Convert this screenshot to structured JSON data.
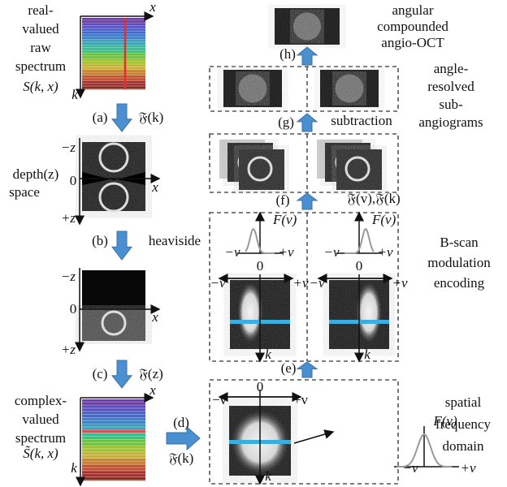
{
  "raw_spectrum": {
    "label": [
      "real-",
      "valued",
      "raw",
      "spectrum"
    ],
    "symbol": "S(k, x)",
    "x_axis": "x",
    "k_axis": "k"
  },
  "step_a": {
    "label": "(a)",
    "op": "𝔉(k)"
  },
  "depth_space": {
    "label": [
      "depth(z)",
      "space"
    ],
    "neg": "−z",
    "zero": "0",
    "pos": "+z",
    "x_axis": "x"
  },
  "step_b": {
    "label": "(b)",
    "op": "heaviside"
  },
  "heaviside_space": {
    "neg": "−z",
    "zero": "0",
    "pos": "+z",
    "x_axis": "x"
  },
  "step_c": {
    "label": "(c)",
    "op": "𝔉(z)"
  },
  "complex_spectrum": {
    "label": [
      "complex-",
      "valued",
      "spectrum"
    ],
    "symbol": "S̃(k, x)",
    "x_axis": "x",
    "k_axis": "k"
  },
  "step_d": {
    "label": "(d)",
    "op": "𝔉(k)"
  },
  "spatial_frequency": {
    "label": [
      "spatial",
      "frequency",
      "domain"
    ],
    "zero": "0",
    "neg": "−v",
    "pos": "+v",
    "k_axis": "k",
    "profile": {
      "func": "F(v)",
      "neg": "−v",
      "pos": "+v"
    }
  },
  "step_e": {
    "label": "(e)"
  },
  "bscan_encoding": {
    "label": [
      "B-scan",
      "modulation",
      "encoding"
    ],
    "panels": [
      {
        "func": "F(v)",
        "fneg": "−v",
        "fpos": "+v",
        "zero": "0",
        "neg": "−v",
        "pos": "+v",
        "k_axis": "k"
      },
      {
        "func": "F(v)",
        "fneg": "−v",
        "fpos": "+v",
        "zero": "0",
        "neg": "−v",
        "pos": "+v",
        "k_axis": "k"
      }
    ]
  },
  "step_f": {
    "label": "(f)",
    "op": "𝔉(v),𝔉(k)"
  },
  "step_g": {
    "label": "(g)",
    "op": "subtraction"
  },
  "sub_angiograms": {
    "label": [
      "angle-",
      "resolved",
      "sub-",
      "angiograms"
    ]
  },
  "step_h": {
    "label": "(h)"
  },
  "compounded": {
    "label": [
      "angular",
      "compounded",
      "angio-OCT"
    ]
  }
}
